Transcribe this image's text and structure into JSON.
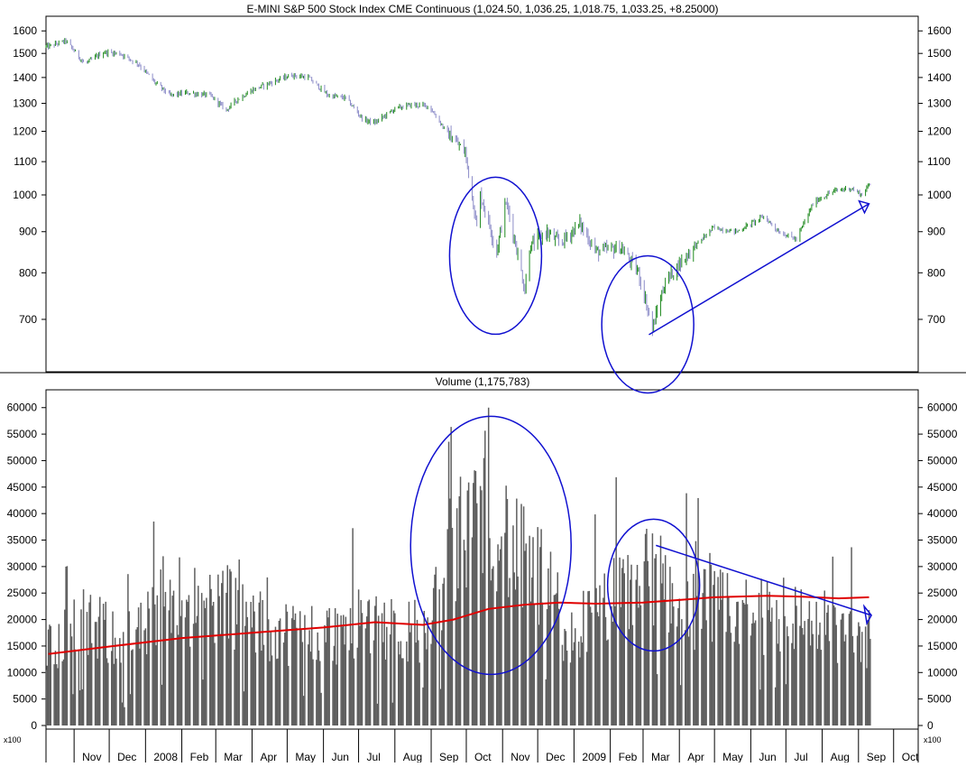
{
  "colors": {
    "background": "#ffffff",
    "frame": "#000000",
    "price_up": "#1f8a1f",
    "price_down": "#8c8cc8",
    "volume_bars": "#5f5f5f",
    "volume_ma": "#e00000",
    "annotation": "#1010d0"
  },
  "chart_data": [
    {
      "type": "line",
      "title": "E-MINI S&P 500 Stock Index CME Continuous (1,024.50, 1,036.25, 1,018.75, 1,033.25, +8.25000)",
      "yscale": "log",
      "ylim": [
        615,
        1660
      ],
      "yticks": [
        1600,
        1500,
        1400,
        1300,
        1200,
        1100,
        1000,
        900,
        800,
        700
      ],
      "grid": false,
      "series": [
        {
          "x": [
            "2007-10-10",
            "2007-10-25",
            "2007-11-10",
            "2007-11-26",
            "2007-12-10",
            "2007-12-26",
            "2008-01-09",
            "2008-01-22",
            "2008-02-05",
            "2008-02-25",
            "2008-03-10",
            "2008-03-18",
            "2008-04-01",
            "2008-04-20",
            "2008-05-05",
            "2008-05-19",
            "2008-06-05",
            "2008-06-20",
            "2008-07-05",
            "2008-07-15",
            "2008-08-01",
            "2008-08-15",
            "2008-08-30",
            "2008-09-12",
            "2008-09-18",
            "2008-09-30",
            "2008-10-10",
            "2008-10-13",
            "2008-10-27",
            "2008-11-04",
            "2008-11-20",
            "2008-11-24",
            "2008-12-08",
            "2008-12-20",
            "2009-01-06",
            "2009-01-20",
            "2009-02-10",
            "2009-02-25",
            "2009-03-09",
            "2009-03-20",
            "2009-04-10",
            "2009-04-30",
            "2009-05-20",
            "2009-06-12",
            "2009-06-25",
            "2009-07-10",
            "2009-07-25",
            "2009-08-10",
            "2009-08-25",
            "2009-09-04",
            "2009-09-10"
          ],
          "values": [
            1530,
            1555,
            1455,
            1505,
            1500,
            1455,
            1380,
            1330,
            1340,
            1330,
            1275,
            1310,
            1350,
            1385,
            1410,
            1400,
            1330,
            1320,
            1240,
            1230,
            1280,
            1295,
            1290,
            1210,
            1180,
            1130,
            910,
            1000,
            850,
            980,
            760,
            860,
            900,
            870,
            920,
            850,
            860,
            800,
            680,
            780,
            850,
            910,
            900,
            940,
            900,
            880,
            980,
            1010,
            1020,
            1000,
            1030
          ]
        }
      ]
    },
    {
      "type": "bar",
      "title": "Volume (1,175,783)",
      "ylim": [
        0,
        62000
      ],
      "yticks": [
        0,
        5000,
        10000,
        15000,
        20000,
        25000,
        30000,
        35000,
        40000,
        45000,
        50000,
        55000,
        60000
      ],
      "unit_label": "x100",
      "grid": false,
      "series": [
        {
          "name": "Volume",
          "x": [
            "2007-10-10",
            "2007-10-20",
            "2007-11-05",
            "2007-11-20",
            "2007-12-05",
            "2007-12-20",
            "2008-01-10",
            "2008-01-20",
            "2008-02-10",
            "2008-03-10",
            "2008-03-20",
            "2008-04-10",
            "2008-05-10",
            "2008-06-10",
            "2008-07-15",
            "2008-08-10",
            "2008-08-30",
            "2008-09-15",
            "2008-09-30",
            "2008-10-10",
            "2008-10-24",
            "2008-11-10",
            "2008-11-25",
            "2008-12-10",
            "2008-12-22",
            "2009-01-10",
            "2009-02-10",
            "2009-03-10",
            "2009-03-20",
            "2009-04-10",
            "2009-05-10",
            "2009-06-10",
            "2009-07-10",
            "2009-08-10",
            "2009-08-30",
            "2009-09-10"
          ],
          "values": [
            14000,
            16000,
            19000,
            17000,
            17000,
            15000,
            20000,
            26000,
            22000,
            23000,
            21000,
            18000,
            17000,
            17000,
            20000,
            17000,
            18000,
            30000,
            36000,
            41000,
            40000,
            32000,
            28000,
            26000,
            14000,
            19000,
            24000,
            28000,
            26000,
            22000,
            21000,
            20000,
            20000,
            18000,
            17000,
            16000
          ]
        },
        {
          "name": "Volume MA",
          "type": "line",
          "x": [
            "2007-10-10",
            "2007-12-05",
            "2008-02-01",
            "2008-04-01",
            "2008-06-01",
            "2008-07-15",
            "2008-08-25",
            "2008-09-20",
            "2008-10-20",
            "2008-11-20",
            "2008-12-20",
            "2009-01-20",
            "2009-03-01",
            "2009-04-01",
            "2009-05-01",
            "2009-06-15",
            "2009-07-15",
            "2009-08-15",
            "2009-09-10"
          ],
          "values": [
            13500,
            15000,
            16500,
            17500,
            18500,
            19500,
            19000,
            20000,
            22000,
            22800,
            23200,
            23000,
            23200,
            23700,
            24200,
            24500,
            24300,
            24000,
            24200
          ]
        }
      ]
    }
  ],
  "x_axis": {
    "labels": [
      {
        "text": "Nov",
        "date": "2007-11-01"
      },
      {
        "text": "Dec",
        "date": "2007-12-01"
      },
      {
        "text": "2008",
        "date": "2008-01-01"
      },
      {
        "text": "Feb",
        "date": "2008-02-01"
      },
      {
        "text": "Mar",
        "date": "2008-03-01"
      },
      {
        "text": "Apr",
        "date": "2008-04-01"
      },
      {
        "text": "May",
        "date": "2008-05-01"
      },
      {
        "text": "Jun",
        "date": "2008-06-01"
      },
      {
        "text": "Jul",
        "date": "2008-07-01"
      },
      {
        "text": "Aug",
        "date": "2008-08-01"
      },
      {
        "text": "Sep",
        "date": "2008-09-01"
      },
      {
        "text": "Oct",
        "date": "2008-10-01"
      },
      {
        "text": "Nov",
        "date": "2008-11-01"
      },
      {
        "text": "Dec",
        "date": "2008-12-01"
      },
      {
        "text": "2009",
        "date": "2009-01-01"
      },
      {
        "text": "Feb",
        "date": "2009-02-01"
      },
      {
        "text": "Mar",
        "date": "2009-03-01"
      },
      {
        "text": "Apr",
        "date": "2009-04-01"
      },
      {
        "text": "May",
        "date": "2009-05-01"
      },
      {
        "text": "Jun",
        "date": "2009-06-01"
      },
      {
        "text": "Jul",
        "date": "2009-07-01"
      },
      {
        "text": "Aug",
        "date": "2009-08-01"
      },
      {
        "text": "Sep",
        "date": "2009-09-01"
      },
      {
        "text": "Oct",
        "date": "2009-10-01"
      }
    ]
  }
}
